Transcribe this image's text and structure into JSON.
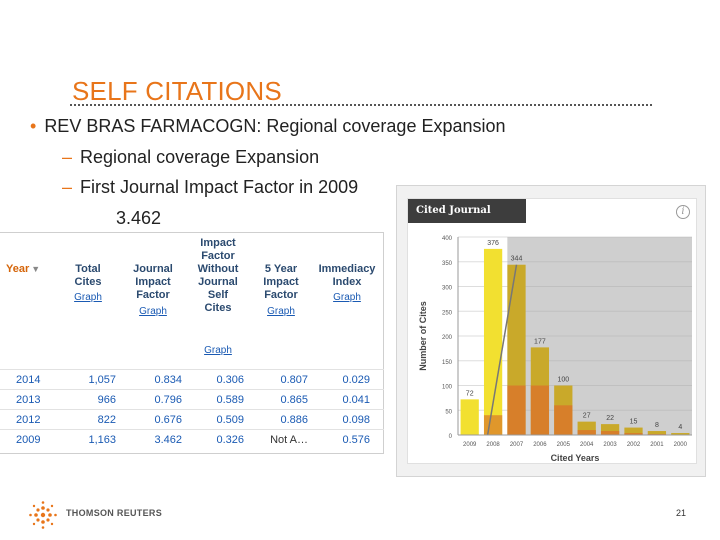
{
  "slide": {
    "title": "SELF CITATIONS",
    "bullet": "REV BRAS FARMACOGN:  Regional coverage Expansion",
    "sub_items": [
      "Regional coverage Expansion",
      "First Journal Impact Factor in 2009"
    ],
    "first_impact_factor": "3.462",
    "page_number": "21"
  },
  "metrics_table": {
    "headers": {
      "year": "Year",
      "total_cites": [
        "Total",
        "Cites"
      ],
      "journal_if": [
        "Journal",
        "Impact",
        "Factor"
      ],
      "if_without_self": [
        "Impact",
        "Factor",
        "Without",
        "Journal",
        "Self",
        "Cites"
      ],
      "five_year_if": [
        "5 Year",
        "Impact",
        "Factor"
      ],
      "immediacy": [
        "Immediacy",
        "Index"
      ]
    },
    "graph_link": "Graph",
    "rows": [
      {
        "year": "2014",
        "total_cites": "1,057",
        "jif": "0.834",
        "if_no_self": "0.306",
        "five_year": "0.807",
        "immediacy": "0.029"
      },
      {
        "year": "2013",
        "total_cites": "966",
        "jif": "0.796",
        "if_no_self": "0.589",
        "five_year": "0.865",
        "immediacy": "0.041"
      },
      {
        "year": "2012",
        "total_cites": "822",
        "jif": "0.676",
        "if_no_self": "0.509",
        "five_year": "0.886",
        "immediacy": "0.098"
      },
      {
        "year": "2009",
        "total_cites": "1,163",
        "jif": "3.462",
        "if_no_self": "0.326",
        "five_year": "Not A…",
        "immediacy": "0.576"
      }
    ]
  },
  "graph": {
    "tab_label": "Cited Journal Graph",
    "info_icon": "info-icon"
  },
  "chart_data": {
    "type": "bar",
    "title": "",
    "xlabel": "Cited Years",
    "ylabel": "Number of Cites",
    "ylim": [
      0,
      400
    ],
    "yticks": [
      0,
      50,
      100,
      150,
      200,
      250,
      300,
      350,
      400
    ],
    "categories": [
      "2009",
      "2008",
      "2007",
      "2006",
      "2005",
      "2004",
      "2003",
      "2002",
      "2001",
      "2000"
    ],
    "values": [
      72,
      376,
      344,
      177,
      100,
      27,
      22,
      15,
      8,
      4
    ],
    "self_cites": [
      0,
      40,
      100,
      100,
      60,
      10,
      8,
      4,
      2,
      1
    ],
    "colors": {
      "bar": "#f2e030",
      "bar_dark": "#c9a92a",
      "self": "#d9782a",
      "shade": "#a8a8a8",
      "grid": "#dddddd"
    }
  },
  "footer": {
    "company": "THOMSON REUTERS"
  }
}
